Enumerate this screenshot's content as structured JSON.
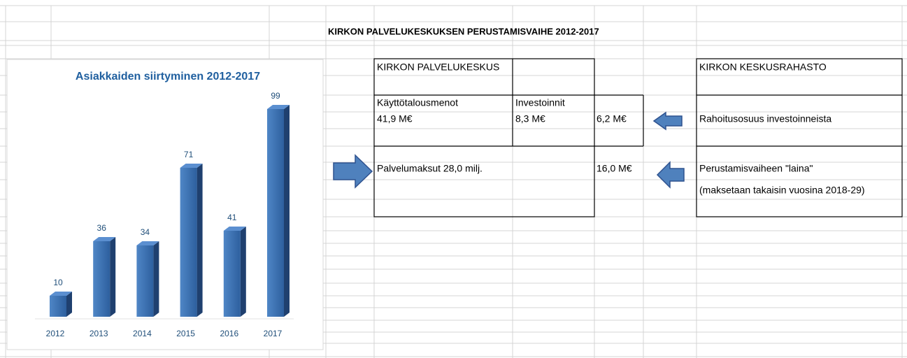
{
  "sheet_title": "KIRKON PALVELUKESKUKSEN PERUSTAMISVAIHE 2012-2017",
  "cells": [
    "KIRKON PALVELUKESKUS",
    "Käyttötalousmenot",
    "Investoinnit",
    "41,9 M€",
    "8,3 M€",
    "6,2 M€",
    "Palvelumaksut 28,0 milj.",
    "16,0 M€",
    "KIRKON KESKUSRAHASTO",
    "Rahoitusosuus investoinneista",
    "Perustamisvaiheen \"laina\"",
    "(maksetaan takaisin vuosina 2018-29)"
  ],
  "chart_data": {
    "type": "bar",
    "title": "Asiakkaiden siirtyminen 2012-2017",
    "categories": [
      "2012",
      "2013",
      "2014",
      "2015",
      "2016",
      "2017"
    ],
    "values": [
      10,
      36,
      34,
      71,
      41,
      99
    ],
    "color": "#3b6fb0",
    "ylim": [
      0,
      100
    ]
  }
}
